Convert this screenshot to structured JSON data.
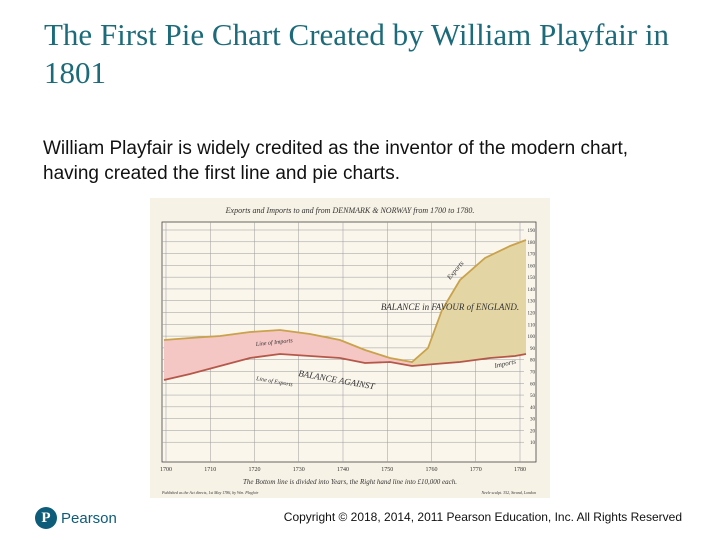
{
  "slide": {
    "title": "The First Pie Chart Created by William Playfair in 1801",
    "body": "William Playfair is widely credited as the inventor of the modern chart, having created the first line and pie charts."
  },
  "figure": {
    "header": "Exports and Imports to and from DENMARK & NORWAY from 1700 to 1780.",
    "area_label_1": "BALANCE AGAINST",
    "area_label_2": "BALANCE in FAVOUR of ENGLAND.",
    "line_label_exports": "Exports",
    "line_label_imports": "Imports",
    "line_label_import_upper": "Line of Imports",
    "line_label_export_lower": "Line of Exports",
    "x_ticks": [
      "1700",
      "1710",
      "1720",
      "1730",
      "1740",
      "1750",
      "1760",
      "1770",
      "1780"
    ],
    "y_ticks": [
      "10",
      "20",
      "30",
      "40",
      "50",
      "60",
      "70",
      "80",
      "90",
      "100",
      "110",
      "120",
      "130",
      "140",
      "150",
      "160",
      "170",
      "180",
      "190"
    ],
    "footer": "The Bottom line is divided into Years, the Right hand line into £10,000 each.",
    "publisher_left": "Published as the Act directs, 1st May 1786, by Wm. Playfair",
    "publisher_right": "Neele sculpt. 352, Strand, London"
  },
  "footer": {
    "logo_mark": "P",
    "logo_text": "Pearson",
    "copyright": "Copyright © 2018, 2014, 2011 Pearson Education, Inc. All Rights Reserved"
  },
  "colors": {
    "title": "#1b6b7a",
    "imports_line": "#b5584a",
    "exports_line": "#c9a24a",
    "area_against": "#f4c6c4",
    "area_favour": "#e4d6a4"
  }
}
